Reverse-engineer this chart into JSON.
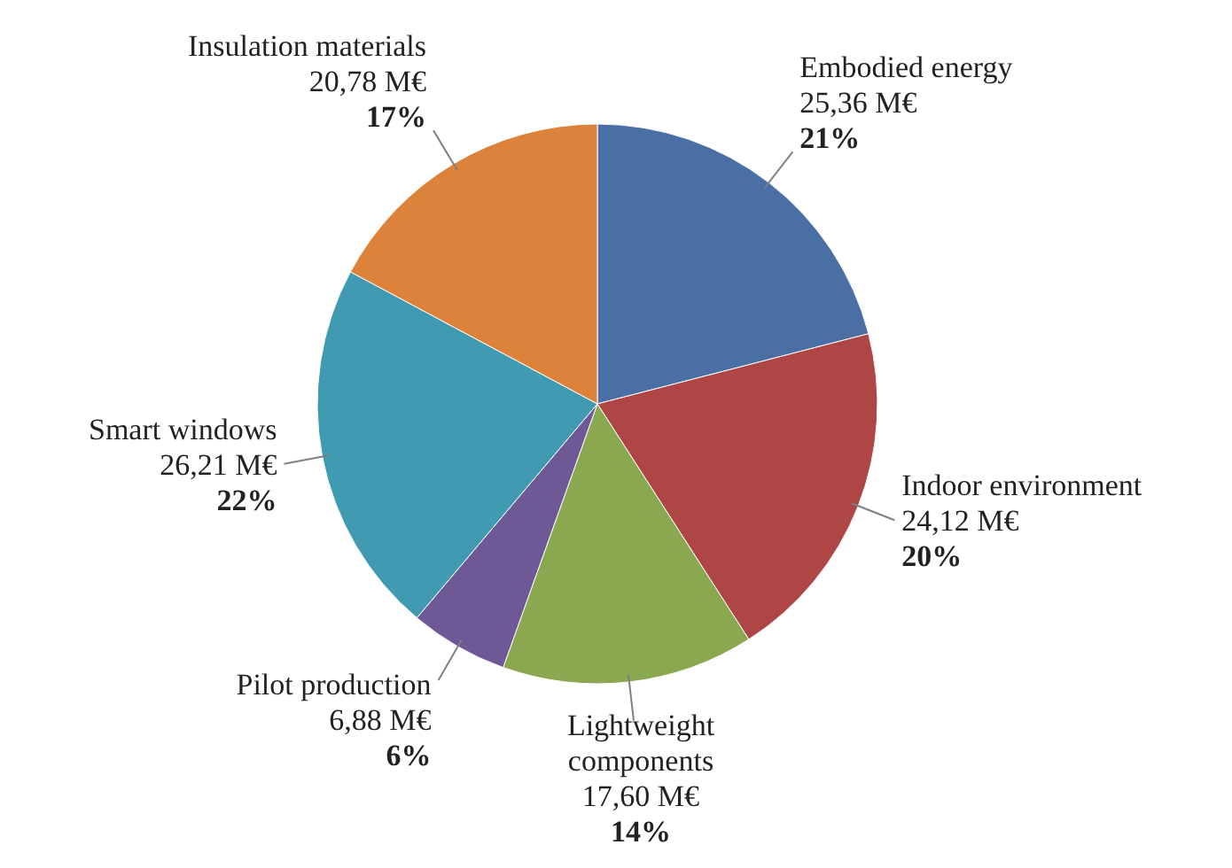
{
  "chart_data": {
    "type": "pie",
    "categories": [
      "Embodied energy",
      "Indoor environment",
      "Lightweight components",
      "Pilot production",
      "Smart windows",
      "Insulation materials"
    ],
    "values": [
      25.36,
      24.12,
      17.6,
      6.88,
      26.21,
      20.78
    ],
    "value_labels": [
      "25,36 M€\n21%",
      "24,12 M€\n20%",
      "17,60 M€\n14%",
      "6,88 M€\n6%",
      "26,21 M€\n22%",
      "20,78 M€\n17%"
    ],
    "colors": [
      "#4a6fa5",
      "#ad4644",
      "#8aa84f",
      "#6f5896",
      "#3f9ab2",
      "#dc823a"
    ]
  }
}
